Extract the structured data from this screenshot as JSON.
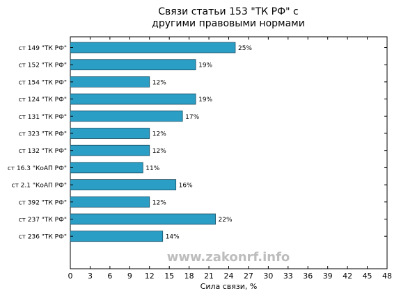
{
  "chart_data": {
    "type": "bar",
    "orientation": "horizontal",
    "title_lines": [
      "Связи статьи 153 \"ТК РФ\" с",
      "другими правовыми нормами"
    ],
    "xlabel": "Сила связи, %",
    "ylabel": "",
    "xlim": [
      0,
      48
    ],
    "xticks": [
      0,
      3,
      6,
      9,
      12,
      15,
      18,
      21,
      24,
      27,
      30,
      33,
      36,
      39,
      42,
      45,
      48
    ],
    "grid": false,
    "bar_color": "#2b9ec6",
    "categories": [
      "ст 149 \"ТК РФ\"",
      "ст 152 \"ТК РФ\"",
      "ст 154 \"ТК РФ\"",
      "ст 124 \"ТК РФ\"",
      "ст 131 \"ТК РФ\"",
      "ст 323 \"ТК РФ\"",
      "ст 132 \"ТК РФ\"",
      "ст 16.3 \"КоАП РФ\"",
      "ст 2.1 \"КоАП РФ\"",
      "ст 392 \"ТК РФ\"",
      "ст 237 \"ТК РФ\"",
      "ст 236 \"ТК РФ\""
    ],
    "values": [
      25,
      19,
      12,
      19,
      17,
      12,
      12,
      11,
      16,
      12,
      22,
      14
    ],
    "value_labels": [
      "25%",
      "19%",
      "12%",
      "19%",
      "17%",
      "12%",
      "12%",
      "11%",
      "16%",
      "12%",
      "22%",
      "14%"
    ]
  },
  "watermark": "www.zakonrf.info"
}
